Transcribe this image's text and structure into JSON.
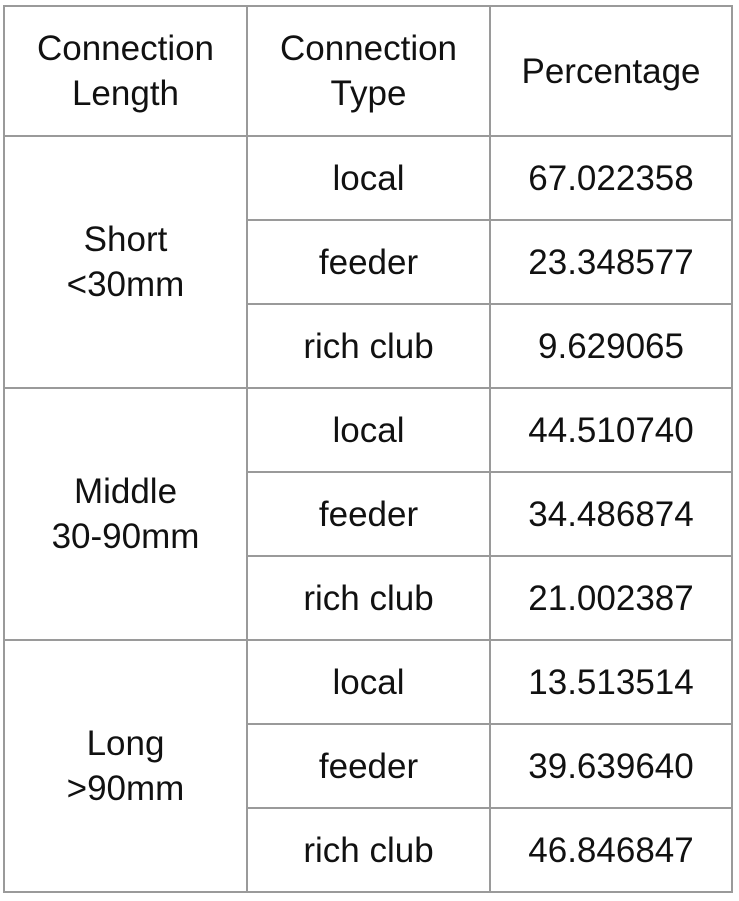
{
  "headers": {
    "length": [
      "Connection",
      "Length"
    ],
    "type": [
      "Connection",
      "Type"
    ],
    "percentage": "Percentage"
  },
  "groups": [
    {
      "label": [
        "Short",
        "<30mm"
      ],
      "rows": [
        {
          "type": "local",
          "value": "67.022358"
        },
        {
          "type": "feeder",
          "value": "23.348577"
        },
        {
          "type": "rich club",
          "value": "9.629065"
        }
      ]
    },
    {
      "label": [
        "Middle",
        "30-90mm"
      ],
      "rows": [
        {
          "type": "local",
          "value": "44.510740"
        },
        {
          "type": "feeder",
          "value": "34.486874"
        },
        {
          "type": "rich club",
          "value": "21.002387"
        }
      ]
    },
    {
      "label": [
        "Long",
        ">90mm"
      ],
      "rows": [
        {
          "type": "local",
          "value": "13.513514"
        },
        {
          "type": "feeder",
          "value": "39.639640"
        },
        {
          "type": "rich club",
          "value": "46.846847"
        }
      ]
    }
  ]
}
